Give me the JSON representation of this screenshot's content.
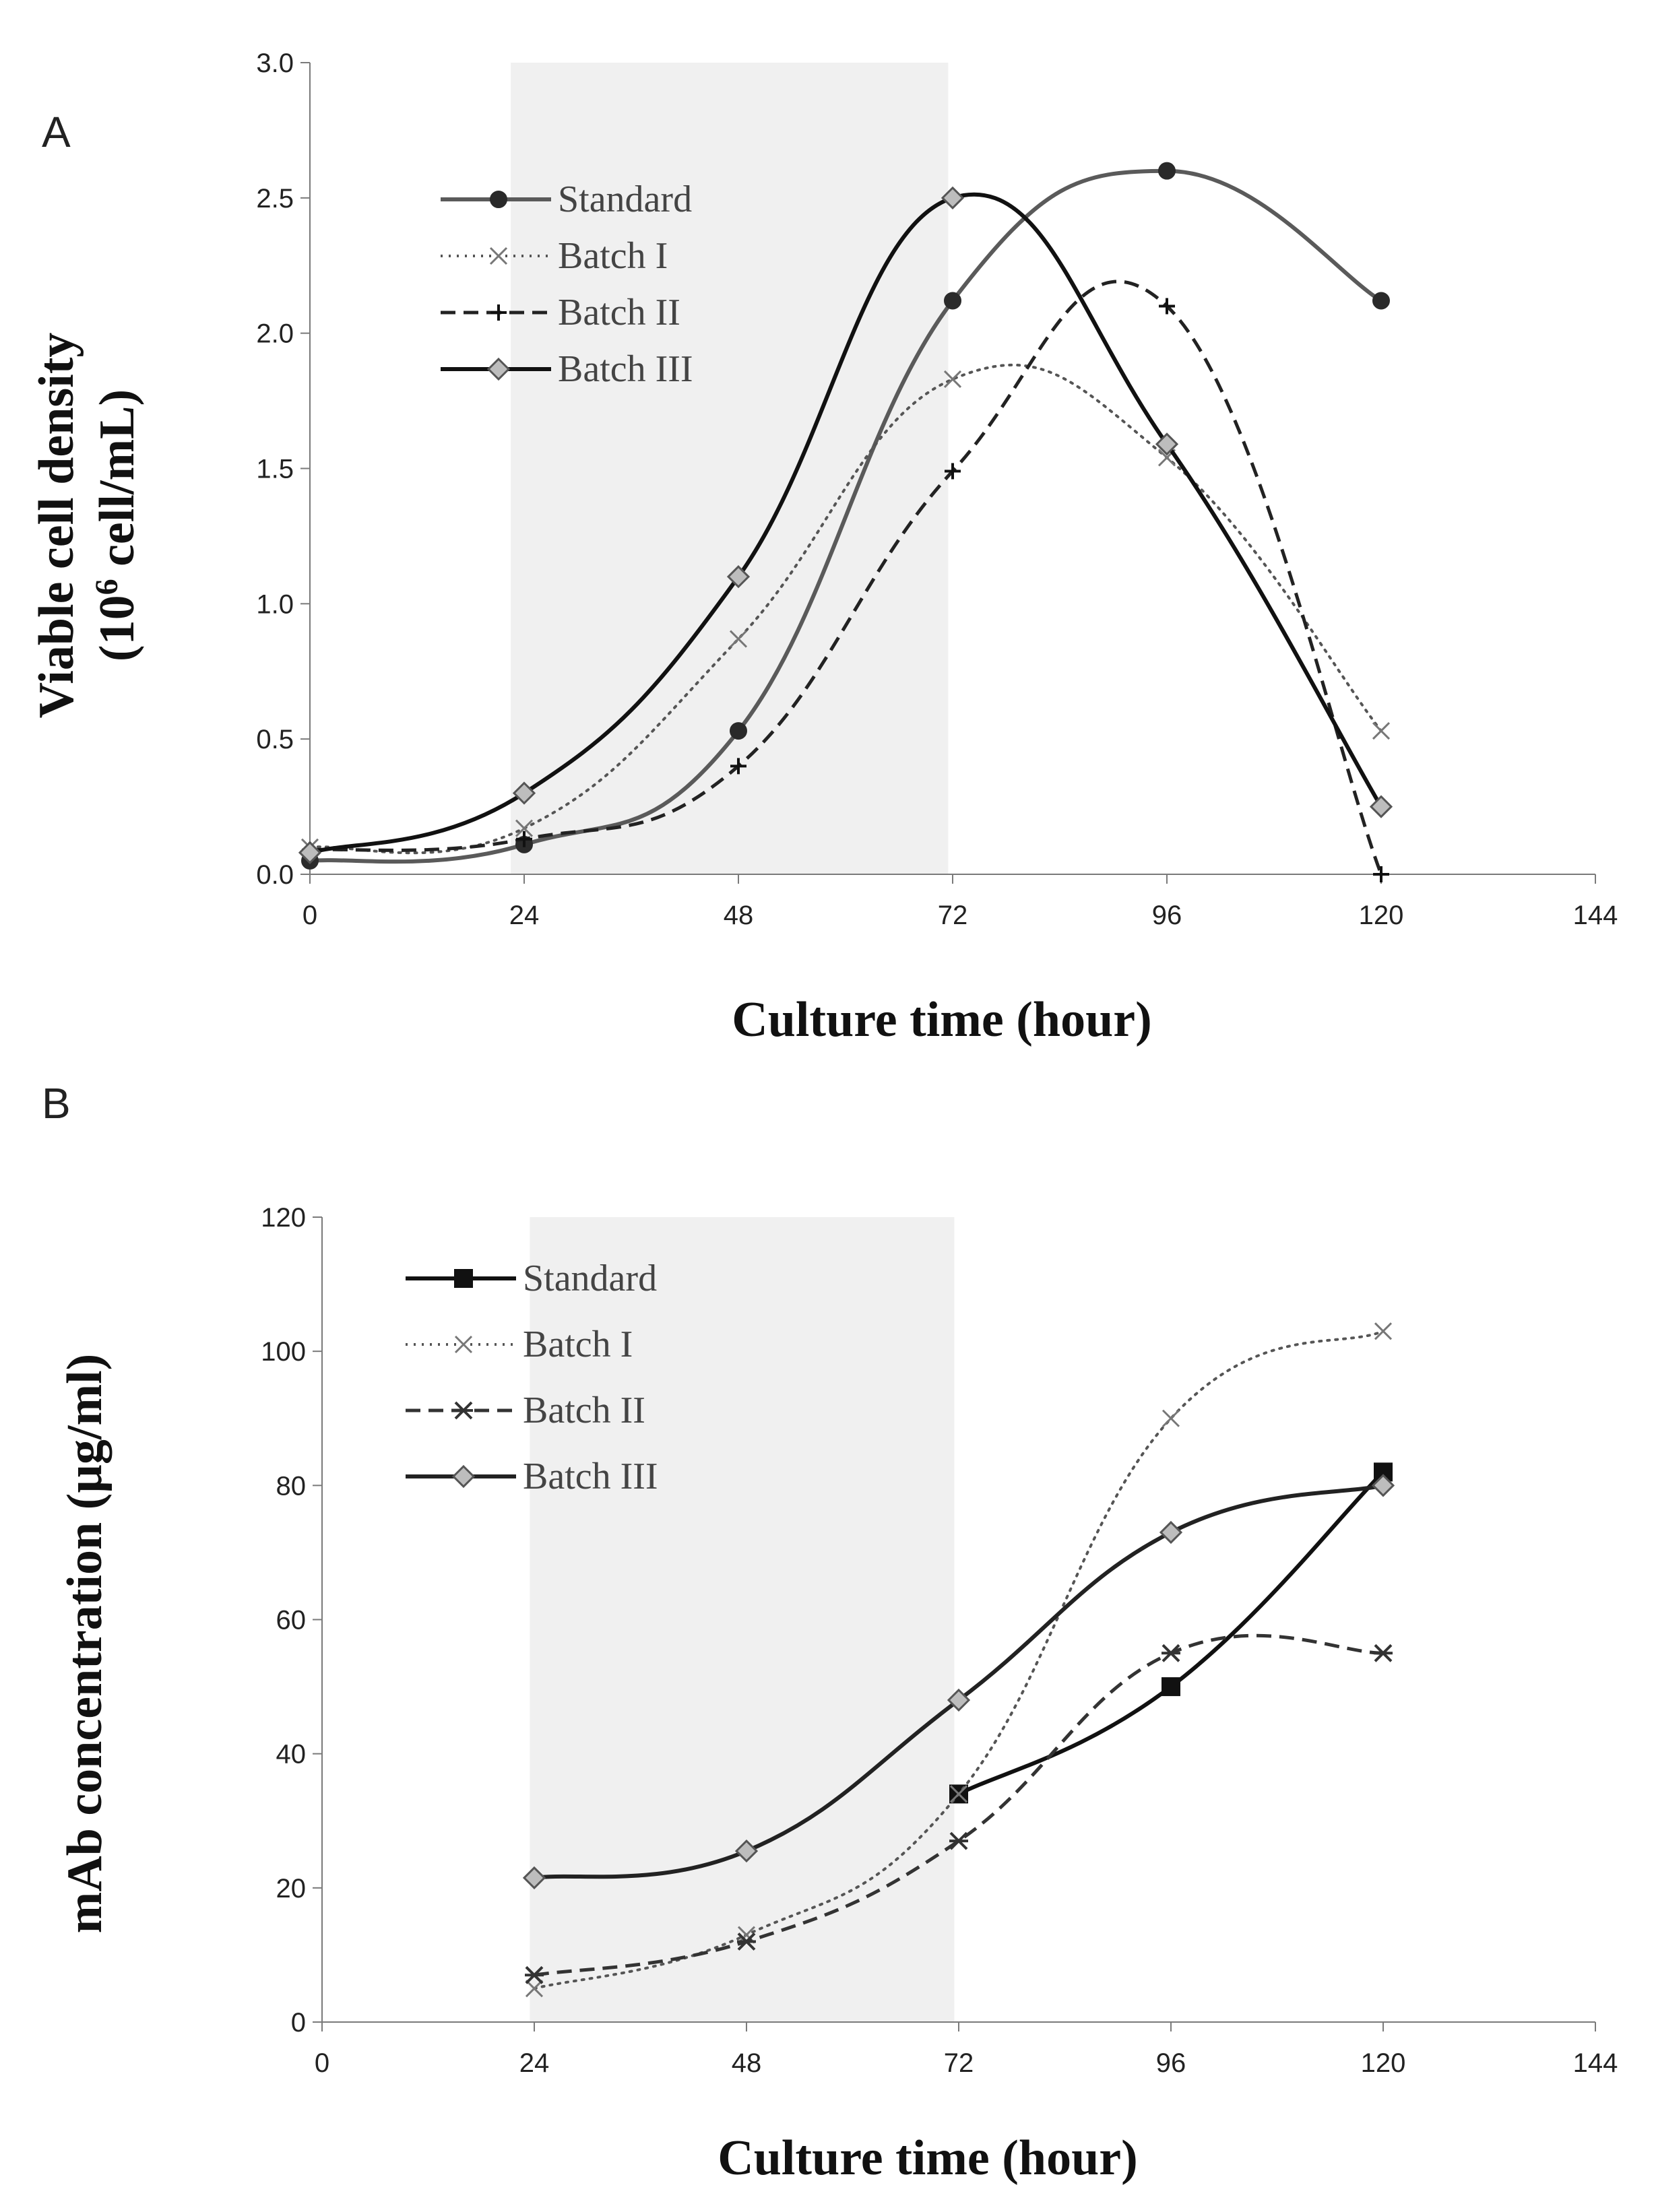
{
  "chart_data": [
    {
      "type": "line",
      "panel_label": "A",
      "xlabel": "Culture  time  (hour)",
      "ylabel_line1": "Viable  cell density",
      "ylabel_line2_prefix": "(10",
      "ylabel_line2_sup": "6",
      "ylabel_line2_suffix": " cell/mL)",
      "xlim": [
        0,
        144
      ],
      "ylim": [
        0,
        3.0
      ],
      "x_ticks": [
        "0",
        "24",
        "48",
        "72",
        "96",
        "120",
        "144"
      ],
      "y_ticks": [
        "0.0",
        "0.5",
        "1.0",
        "1.5",
        "2.0",
        "2.5",
        "3.0"
      ],
      "shaded_region": [
        22.5,
        71.5
      ],
      "legend_position": "top-left",
      "series": [
        {
          "name": "Standard",
          "marker": "circle",
          "dash": "solid",
          "color": "#5a5a5a",
          "x": [
            0,
            24,
            48,
            72,
            96,
            120
          ],
          "values": [
            0.05,
            0.11,
            0.53,
            2.12,
            2.6,
            2.12
          ]
        },
        {
          "name": "Batch I",
          "marker": "x",
          "dash": "dotted",
          "color": "#555555",
          "x": [
            0,
            24,
            48,
            72,
            96,
            120
          ],
          "values": [
            0.1,
            0.17,
            0.87,
            1.83,
            1.54,
            0.53
          ]
        },
        {
          "name": "Batch II",
          "marker": "plus",
          "dash": "dashed",
          "color": "#222222",
          "x": [
            0,
            24,
            48,
            72,
            96,
            120
          ],
          "values": [
            0.09,
            0.13,
            0.4,
            1.49,
            2.1,
            0.0
          ]
        },
        {
          "name": "Batch III",
          "marker": "diamond",
          "dash": "solid",
          "color": "#111111",
          "x": [
            0,
            24,
            48,
            72,
            96,
            120
          ],
          "values": [
            0.08,
            0.3,
            1.1,
            2.5,
            1.59,
            0.25
          ]
        }
      ]
    },
    {
      "type": "line",
      "panel_label": "B",
      "xlabel": "Culture  time  (hour)",
      "ylabel": "mAb concentration (µg/ml)",
      "xlim": [
        0,
        144
      ],
      "ylim": [
        0,
        120
      ],
      "x_ticks": [
        "0",
        "24",
        "48",
        "72",
        "96",
        "120",
        "144"
      ],
      "y_ticks": [
        "0",
        "20",
        "40",
        "60",
        "80",
        "100",
        "120"
      ],
      "shaded_region": [
        23.5,
        71.5
      ],
      "legend_position": "top-left",
      "series": [
        {
          "name": "Standard",
          "marker": "square",
          "dash": "solid",
          "color": "#111111",
          "x": [
            72,
            96,
            120
          ],
          "values": [
            34,
            50,
            82
          ]
        },
        {
          "name": "Batch I",
          "marker": "x",
          "dash": "dotted",
          "color": "#555555",
          "x": [
            24,
            48,
            72,
            96,
            120
          ],
          "values": [
            5,
            13,
            34,
            90,
            103
          ]
        },
        {
          "name": "Batch II",
          "marker": "asterisk",
          "dash": "dashed",
          "color": "#333333",
          "x": [
            24,
            48,
            72,
            96,
            120
          ],
          "values": [
            7,
            12,
            27,
            55,
            55
          ]
        },
        {
          "name": "Batch III",
          "marker": "diamond",
          "dash": "solid",
          "color": "#222222",
          "x": [
            24,
            48,
            72,
            96,
            120
          ],
          "values": [
            21.5,
            25.5,
            48,
            73,
            80
          ]
        }
      ]
    }
  ]
}
